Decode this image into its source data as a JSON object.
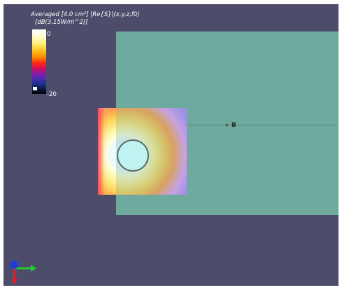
{
  "legend": {
    "title_line1": "Averaged [4.0 cm²] |Re{S}|(x,y,z,f0)",
    "title_line2": "[dB(3.15W/m^2)]",
    "max_label": "0",
    "min_label": "-20"
  },
  "scene": {
    "point_label": "B"
  },
  "colors": {
    "background": "#4d4d6b",
    "plate": "#6faa9e",
    "text": "#ffffff"
  },
  "icons": {
    "axes": "xyz-axes-icon"
  }
}
